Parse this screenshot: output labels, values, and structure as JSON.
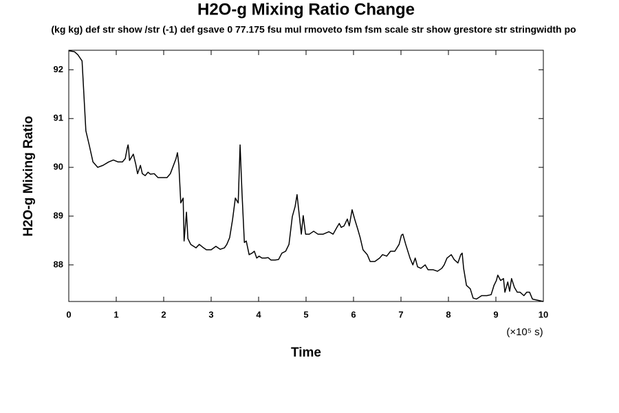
{
  "chart_data": {
    "type": "line",
    "title": "H2O-g Mixing Ratio Change",
    "subtitle": "(kg kg) def str show /str (-1) def gsave 0 77.175 fsu mul rmoveto fsm fsm scale str show grestore str stringwidth po",
    "xlabel": "Time",
    "ylabel": "H2O-g Mixing Ratio",
    "annotations": [
      "(×10⁵ s)"
    ],
    "xlim": [
      0,
      10
    ],
    "xticks": [
      0,
      1,
      2,
      3,
      4,
      5,
      6,
      7,
      8,
      9,
      10
    ],
    "ylim": [
      87.25,
      92.4
    ],
    "yticks": [
      88,
      89,
      90,
      91,
      92
    ],
    "grid": false,
    "x": [
      0.0,
      0.12,
      0.19,
      0.28,
      0.36,
      0.43,
      0.51,
      0.61,
      0.72,
      0.84,
      0.94,
      1.04,
      1.13,
      1.19,
      1.23,
      1.25,
      1.26,
      1.28,
      1.36,
      1.41,
      1.45,
      1.51,
      1.55,
      1.61,
      1.67,
      1.72,
      1.8,
      1.88,
      1.99,
      2.07,
      2.14,
      2.26,
      2.29,
      2.32,
      2.36,
      2.41,
      2.43,
      2.48,
      2.51,
      2.57,
      2.68,
      2.75,
      2.84,
      2.9,
      3.0,
      3.1,
      3.19,
      3.28,
      3.33,
      3.39,
      3.45,
      3.51,
      3.57,
      3.61,
      3.65,
      3.7,
      3.74,
      3.8,
      3.86,
      3.91,
      3.96,
      4.01,
      4.07,
      4.14,
      4.2,
      4.26,
      4.35,
      4.42,
      4.49,
      4.57,
      4.64,
      4.71,
      4.77,
      4.81,
      4.86,
      4.9,
      4.94,
      4.99,
      5.07,
      5.16,
      5.25,
      5.36,
      5.48,
      5.57,
      5.65,
      5.7,
      5.74,
      5.8,
      5.87,
      5.91,
      5.97,
      6.03,
      6.09,
      6.14,
      6.2,
      6.29,
      6.35,
      6.45,
      6.55,
      6.61,
      6.7,
      6.78,
      6.87,
      6.96,
      7.01,
      7.04,
      7.1,
      7.19,
      7.25,
      7.3,
      7.35,
      7.42,
      7.51,
      7.57,
      7.68,
      7.77,
      7.86,
      7.91,
      7.97,
      8.06,
      8.12,
      8.2,
      8.26,
      8.29,
      8.32,
      8.38,
      8.46,
      8.52,
      8.59,
      8.7,
      8.81,
      8.9,
      8.96,
      9.01,
      9.04,
      9.1,
      9.16,
      9.19,
      9.25,
      9.29,
      9.33,
      9.39,
      9.45,
      9.51,
      9.59,
      9.65,
      9.71,
      9.77,
      9.86,
      10.0
    ],
    "series": [
      {
        "name": "H2O-g",
        "color": "#000000",
        "values": [
          92.39,
          92.37,
          92.31,
          92.18,
          90.75,
          90.46,
          90.11,
          90.0,
          90.04,
          90.11,
          90.15,
          90.11,
          90.11,
          90.18,
          90.39,
          90.46,
          90.39,
          90.14,
          90.27,
          90.07,
          89.87,
          90.04,
          89.87,
          89.83,
          89.9,
          89.86,
          89.87,
          89.79,
          89.79,
          89.79,
          89.87,
          90.18,
          90.3,
          90.04,
          89.27,
          89.37,
          88.49,
          89.08,
          88.54,
          88.42,
          88.35,
          88.42,
          88.35,
          88.31,
          88.31,
          88.38,
          88.32,
          88.35,
          88.42,
          88.56,
          88.92,
          89.37,
          89.27,
          90.46,
          89.48,
          88.46,
          88.49,
          88.21,
          88.24,
          88.28,
          88.14,
          88.18,
          88.14,
          88.14,
          88.15,
          88.1,
          88.1,
          88.11,
          88.24,
          88.28,
          88.42,
          88.99,
          89.2,
          89.44,
          88.99,
          88.63,
          89.01,
          88.63,
          88.63,
          88.69,
          88.63,
          88.63,
          88.68,
          88.63,
          88.77,
          88.85,
          88.77,
          88.8,
          88.94,
          88.8,
          89.13,
          88.92,
          88.73,
          88.56,
          88.31,
          88.21,
          88.07,
          88.07,
          88.14,
          88.21,
          88.18,
          88.28,
          88.28,
          88.42,
          88.61,
          88.63,
          88.42,
          88.14,
          88.0,
          88.14,
          87.96,
          87.93,
          88.0,
          87.9,
          87.9,
          87.87,
          87.93,
          88.0,
          88.14,
          88.21,
          88.11,
          88.04,
          88.21,
          88.24,
          87.93,
          87.58,
          87.51,
          87.32,
          87.3,
          87.37,
          87.37,
          87.39,
          87.58,
          87.68,
          87.79,
          87.68,
          87.72,
          87.44,
          87.65,
          87.46,
          87.72,
          87.54,
          87.44,
          87.44,
          87.37,
          87.44,
          87.44,
          87.3,
          87.28,
          87.25
        ]
      }
    ]
  }
}
